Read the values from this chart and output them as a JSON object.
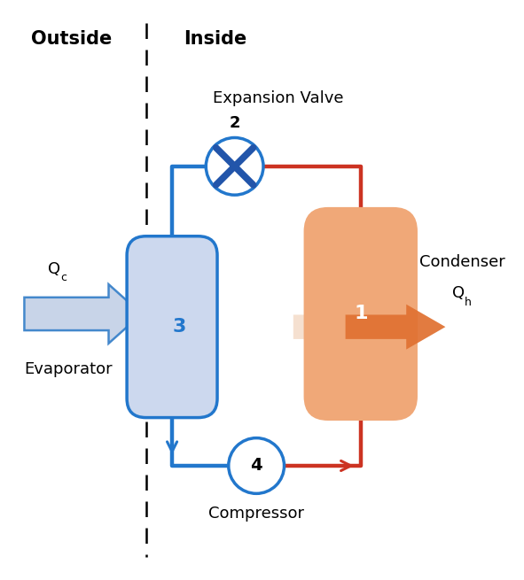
{
  "outside_label": "Outside",
  "inside_label": "Inside",
  "bg_color": "#ffffff",
  "blue_color": "#2277cc",
  "red_color": "#cc3322",
  "orange_fill": "#f0a878",
  "orange_edge": "#e06030",
  "orange_arrow": "#e07030",
  "blue_fill": "#ccd8ee",
  "blue_edge": "#2277cc",
  "valve_fill": "#2255aa",
  "qc_arrow_fill": "#c8d4e8",
  "qc_arrow_edge": "#4488cc",
  "component_names": [
    "Condenser",
    "Expansion Valve",
    "Evaporator",
    "Compressor"
  ],
  "Qc_label": "Q",
  "Qh_label": "Q",
  "pipe_lw": 3.2
}
